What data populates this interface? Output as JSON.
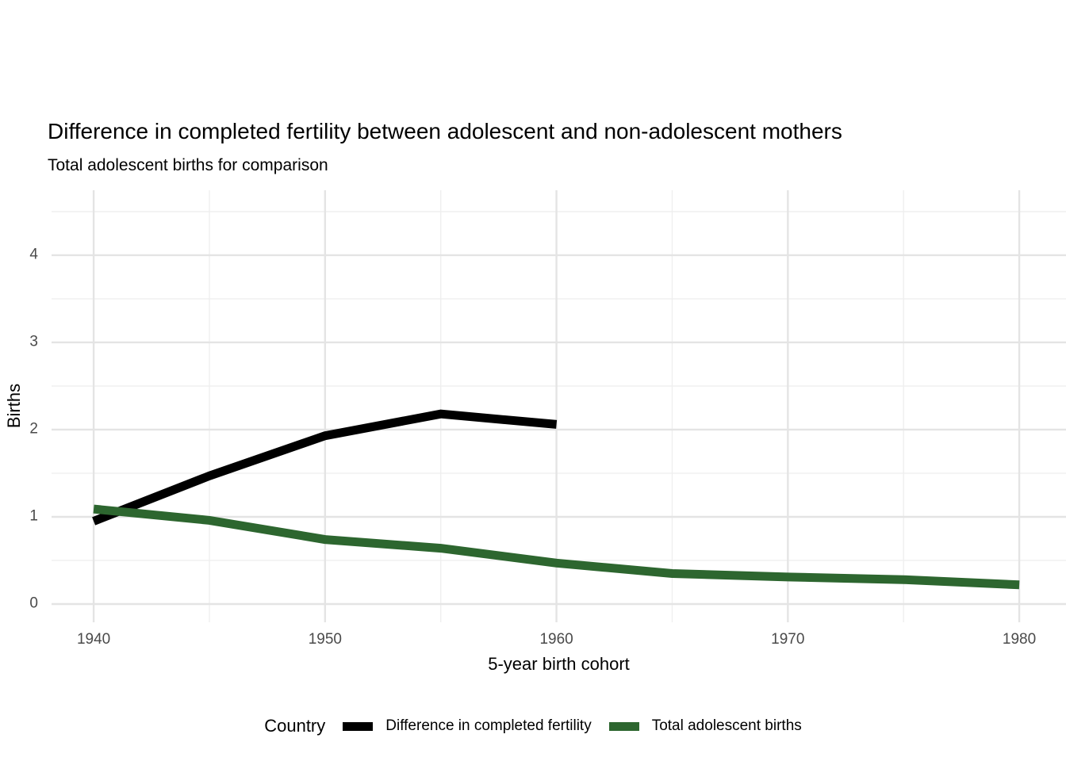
{
  "chart_data": {
    "type": "line",
    "title": "Difference in completed fertility between adolescent and non-adolescent mothers",
    "subtitle": "Total adolescent births for comparison",
    "xlabel": "5-year birth cohort",
    "ylabel": "Births",
    "legend_title": "Country",
    "legend_position": "bottom",
    "grid": "major and minor gridlines, light gray on white, no axis lines",
    "x_ticks": [
      1940,
      1950,
      1960,
      1970,
      1980
    ],
    "x_minor_ticks": [
      1945,
      1955,
      1965,
      1975
    ],
    "y_ticks": [
      0,
      1,
      2,
      3,
      4
    ],
    "y_minor_ticks": [
      0.5,
      1.5,
      2.5,
      3.5,
      4.5
    ],
    "xlim": [
      1938.18,
      1982.02
    ],
    "ylim": [
      -0.209,
      4.745
    ],
    "series": [
      {
        "name": "Difference in completed fertility",
        "color": "#000000",
        "x": [
          1940,
          1945,
          1950,
          1955,
          1960
        ],
        "y": [
          0.95,
          1.47,
          1.93,
          2.18,
          2.06
        ]
      },
      {
        "name": "Total adolescent births",
        "color": "#2d662f",
        "x": [
          1940,
          1945,
          1950,
          1955,
          1960,
          1965,
          1970,
          1975,
          1980
        ],
        "y": [
          1.09,
          0.96,
          0.74,
          0.64,
          0.47,
          0.35,
          0.31,
          0.28,
          0.22
        ]
      }
    ]
  }
}
